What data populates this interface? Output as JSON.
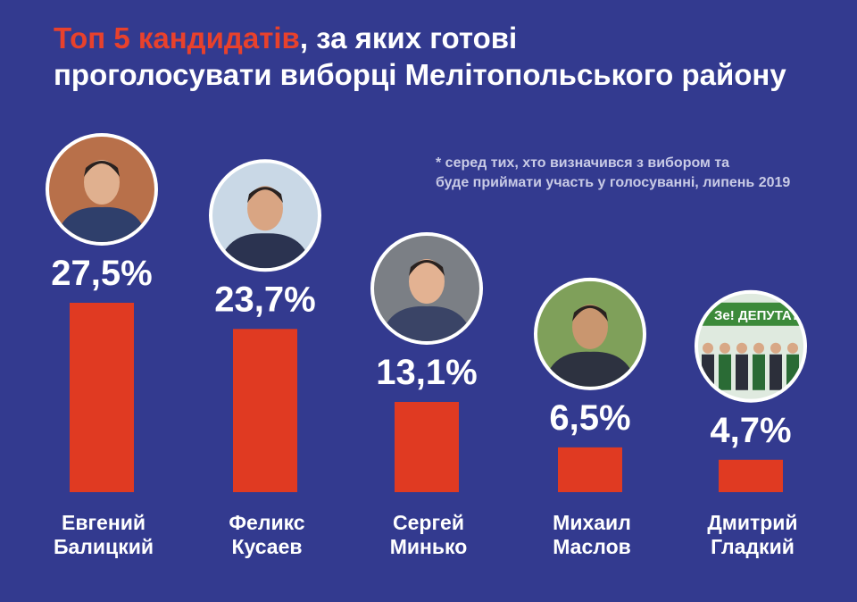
{
  "title": {
    "highlight": "Топ 5 кандидатів",
    "rest_line1": ", за  яких готові",
    "line2": "проголосувати виборці Мелітопольського району"
  },
  "footnote": {
    "line1": "* серед тих, хто визначився з вибором та",
    "line2": "буде приймати участь у голосуванні, липень 2019"
  },
  "colors": {
    "background": "#333a8f",
    "bar": "#e03a22",
    "highlight": "#e8412c",
    "text": "#ffffff"
  },
  "portrait_badge": "Зе! ДЕПУТАТ",
  "chart_data": {
    "type": "bar",
    "categories": [
      [
        "Евгений",
        "Балицкий"
      ],
      [
        "Феликс",
        "Кусаев"
      ],
      [
        "Сергей",
        "Минько"
      ],
      [
        "Михаил",
        "Маслов"
      ],
      [
        "Дмитрий",
        "Гладкий"
      ]
    ],
    "values": [
      27.5,
      23.7,
      13.1,
      6.5,
      4.7
    ],
    "value_labels": [
      "27,5%",
      "23,7%",
      "13,1%",
      "6,5%",
      "4,7%"
    ],
    "unit": "%",
    "ylim": [
      0,
      27.5
    ],
    "grid": false,
    "legend": "none"
  }
}
